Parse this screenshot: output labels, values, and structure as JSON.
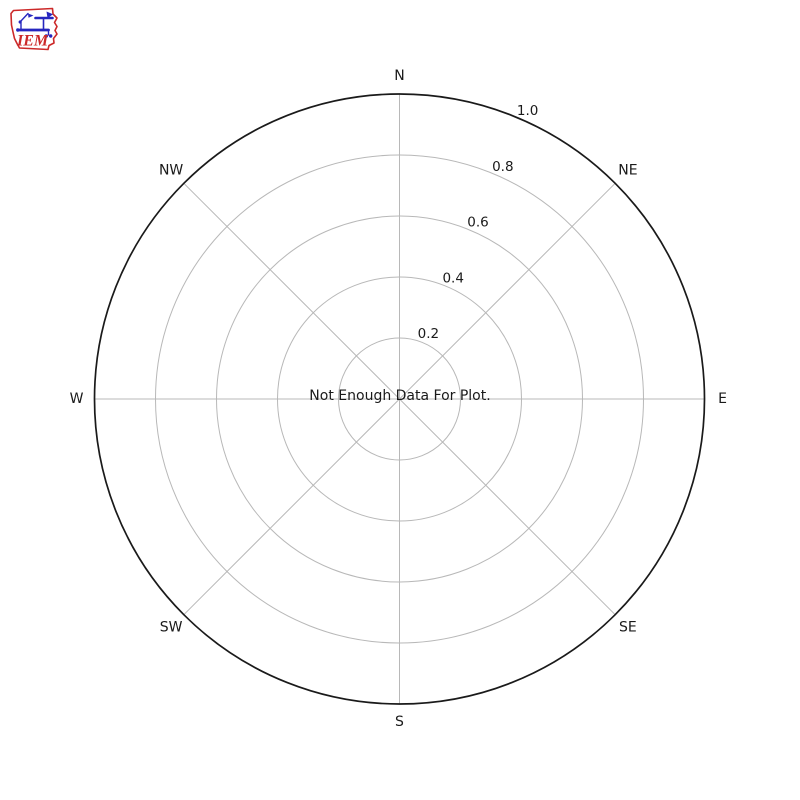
{
  "logo": {
    "text": "IEM",
    "outline_color": "#cc2929",
    "instrument_color": "#2626bf"
  },
  "chart_data": {
    "type": "windrose",
    "title": "",
    "annotation": "Not Enough Data For Plot.",
    "categories": [
      "N",
      "NE",
      "E",
      "SE",
      "S",
      "SW",
      "W",
      "NW"
    ],
    "series": [],
    "radial_ticks": [
      0.2,
      0.4,
      0.6,
      0.8,
      1.0
    ],
    "radial_tick_labels": [
      "0.2",
      "0.4",
      "0.6",
      "0.8",
      "1.0"
    ],
    "rlim": [
      0,
      1.0
    ],
    "grid": true,
    "legend": false,
    "colors": {
      "outer_ring": "#1a1a1a",
      "grid": "#b8b8b8",
      "text": "#1a1a1a"
    }
  }
}
